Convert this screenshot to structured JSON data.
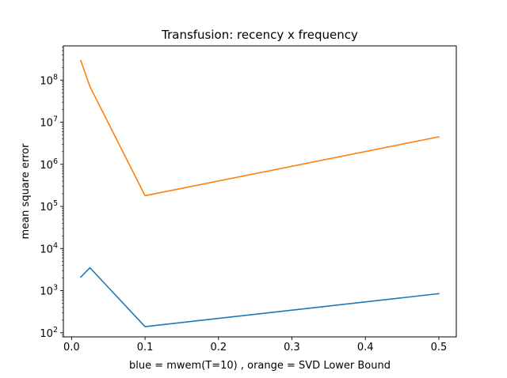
{
  "chart_data": {
    "type": "line",
    "title": "Transfusion: recency x frequency",
    "xlabel": "blue = mwem(T=10) , orange = SVD Lower Bound",
    "ylabel": "mean square error",
    "xscale": "linear",
    "yscale": "log",
    "xlim": [
      -0.0112,
      0.5238
    ],
    "ylim": [
      80,
      650000000
    ],
    "grid": false,
    "x_ticks": [
      {
        "value": 0.0,
        "label": "0.0"
      },
      {
        "value": 0.1,
        "label": "0.1"
      },
      {
        "value": 0.2,
        "label": "0.2"
      },
      {
        "value": 0.3,
        "label": "0.3"
      },
      {
        "value": 0.4,
        "label": "0.4"
      },
      {
        "value": 0.5,
        "label": "0.5"
      }
    ],
    "y_ticks": [
      {
        "value": 100,
        "base": "10",
        "exp": "2"
      },
      {
        "value": 1000,
        "base": "10",
        "exp": "3"
      },
      {
        "value": 10000,
        "base": "10",
        "exp": "4"
      },
      {
        "value": 100000,
        "base": "10",
        "exp": "5"
      },
      {
        "value": 1000000,
        "base": "10",
        "exp": "6"
      },
      {
        "value": 10000000,
        "base": "10",
        "exp": "7"
      },
      {
        "value": 100000000,
        "base": "10",
        "exp": "8"
      }
    ],
    "series": [
      {
        "color": "#1f77b4",
        "x": [
          0.0125,
          0.025,
          0.1,
          0.5
        ],
        "y": [
          2100,
          3500,
          140,
          850
        ]
      },
      {
        "color": "#ff7f0e",
        "x": [
          0.0125,
          0.025,
          0.1,
          0.5
        ],
        "y": [
          290000000,
          70000000,
          180000,
          4500000
        ]
      }
    ]
  }
}
